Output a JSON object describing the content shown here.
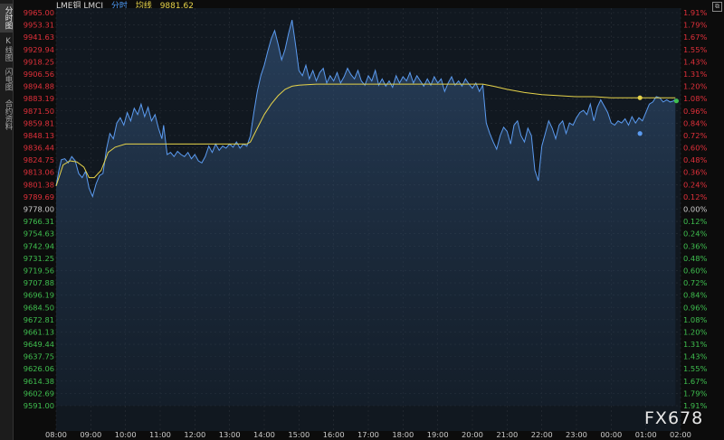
{
  "sidebar": {
    "tabs": [
      {
        "label": "分时图",
        "active": true
      },
      {
        "label": "K线图",
        "active": false
      },
      {
        "label": "闪电图",
        "active": false
      },
      {
        "label": "合约资料",
        "active": false
      }
    ]
  },
  "header": {
    "title": "LME铜 LMCI",
    "mode": "分时",
    "avg_label": "均线",
    "avg_value": "9881.62"
  },
  "watermark": "FX678",
  "colors": {
    "price_line": "#5b9bf0",
    "avg_line": "#e6d34a",
    "up_label": "#e0303a",
    "down_label": "#3fbf4f",
    "neutral_label": "#cccccc",
    "grid": "#2a3038"
  },
  "chart_data": {
    "type": "line",
    "prev_close": 9778.0,
    "ylim": [
      9591.0,
      9965.0
    ],
    "y_tick_labels": [
      "9965.00",
      "9953.31",
      "9941.63",
      "9929.94",
      "9918.25",
      "9906.56",
      "9894.88",
      "9883.19",
      "9871.50",
      "9859.81",
      "9848.13",
      "9836.44",
      "9824.75",
      "9813.06",
      "9801.38",
      "9789.69",
      "9778.00",
      "9766.31",
      "9754.63",
      "9742.94",
      "9731.25",
      "9719.56",
      "9707.88",
      "9696.19",
      "9684.50",
      "9672.81",
      "9661.13",
      "9649.44",
      "9637.75",
      "9626.06",
      "9614.38",
      "9602.69",
      "9591.00"
    ],
    "pct_tick_labels": [
      "1.91%",
      "1.79%",
      "1.67%",
      "1.55%",
      "1.43%",
      "1.31%",
      "1.20%",
      "1.08%",
      "0.96%",
      "0.84%",
      "0.72%",
      "0.60%",
      "0.48%",
      "0.36%",
      "0.24%",
      "0.12%",
      "0.00%",
      "0.12%",
      "0.24%",
      "0.36%",
      "0.48%",
      "0.60%",
      "0.72%",
      "0.84%",
      "0.96%",
      "1.08%",
      "1.20%",
      "1.31%",
      "1.43%",
      "1.55%",
      "1.67%",
      "1.79%",
      "1.91%"
    ],
    "x_tick_labels": [
      "08:00",
      "09:00",
      "10:00",
      "11:00",
      "12:00",
      "13:00",
      "14:00",
      "15:00",
      "16:00",
      "17:00",
      "18:00",
      "19:00",
      "20:00",
      "21:00",
      "22:00",
      "23:00",
      "00:00",
      "01:00",
      "02:00"
    ],
    "x_start_hours": 8,
    "x_span_hours": 18,
    "series": [
      {
        "kind": "price",
        "points": [
          [
            0.0,
            9800
          ],
          [
            0.08,
            9815
          ],
          [
            0.15,
            9825
          ],
          [
            0.25,
            9826
          ],
          [
            0.35,
            9822
          ],
          [
            0.45,
            9828
          ],
          [
            0.55,
            9824
          ],
          [
            0.65,
            9812
          ],
          [
            0.75,
            9808
          ],
          [
            0.85,
            9814
          ],
          [
            0.95,
            9798
          ],
          [
            1.05,
            9790
          ],
          [
            1.15,
            9802
          ],
          [
            1.25,
            9810
          ],
          [
            1.35,
            9812
          ],
          [
            1.45,
            9835
          ],
          [
            1.55,
            9850
          ],
          [
            1.65,
            9845
          ],
          [
            1.75,
            9860
          ],
          [
            1.85,
            9865
          ],
          [
            1.95,
            9858
          ],
          [
            2.05,
            9870
          ],
          [
            2.15,
            9862
          ],
          [
            2.25,
            9874
          ],
          [
            2.35,
            9868
          ],
          [
            2.45,
            9878
          ],
          [
            2.55,
            9866
          ],
          [
            2.65,
            9875
          ],
          [
            2.75,
            9862
          ],
          [
            2.85,
            9868
          ],
          [
            2.95,
            9855
          ],
          [
            3.05,
            9845
          ],
          [
            3.1,
            9858
          ],
          [
            3.2,
            9830
          ],
          [
            3.3,
            9832
          ],
          [
            3.4,
            9828
          ],
          [
            3.5,
            9833
          ],
          [
            3.6,
            9830
          ],
          [
            3.7,
            9828
          ],
          [
            3.8,
            9832
          ],
          [
            3.9,
            9826
          ],
          [
            4.0,
            9830
          ],
          [
            4.1,
            9824
          ],
          [
            4.2,
            9822
          ],
          [
            4.3,
            9828
          ],
          [
            4.4,
            9838
          ],
          [
            4.5,
            9832
          ],
          [
            4.6,
            9840
          ],
          [
            4.7,
            9834
          ],
          [
            4.8,
            9838
          ],
          [
            4.9,
            9836
          ],
          [
            5.0,
            9840
          ],
          [
            5.1,
            9837
          ],
          [
            5.2,
            9842
          ],
          [
            5.3,
            9836
          ],
          [
            5.4,
            9840
          ],
          [
            5.5,
            9838
          ],
          [
            5.6,
            9848
          ],
          [
            5.7,
            9870
          ],
          [
            5.8,
            9890
          ],
          [
            5.9,
            9905
          ],
          [
            6.0,
            9915
          ],
          [
            6.1,
            9928
          ],
          [
            6.2,
            9940
          ],
          [
            6.3,
            9948
          ],
          [
            6.4,
            9935
          ],
          [
            6.5,
            9920
          ],
          [
            6.6,
            9930
          ],
          [
            6.7,
            9945
          ],
          [
            6.8,
            9958
          ],
          [
            6.9,
            9935
          ],
          [
            7.0,
            9910
          ],
          [
            7.1,
            9905
          ],
          [
            7.2,
            9915
          ],
          [
            7.3,
            9902
          ],
          [
            7.4,
            9910
          ],
          [
            7.5,
            9900
          ],
          [
            7.6,
            9908
          ],
          [
            7.7,
            9912
          ],
          [
            7.8,
            9898
          ],
          [
            7.9,
            9905
          ],
          [
            8.0,
            9900
          ],
          [
            8.1,
            9908
          ],
          [
            8.2,
            9898
          ],
          [
            8.3,
            9904
          ],
          [
            8.4,
            9912
          ],
          [
            8.5,
            9906
          ],
          [
            8.6,
            9902
          ],
          [
            8.7,
            9910
          ],
          [
            8.8,
            9900
          ],
          [
            8.9,
            9896
          ],
          [
            9.0,
            9905
          ],
          [
            9.1,
            9900
          ],
          [
            9.2,
            9910
          ],
          [
            9.3,
            9896
          ],
          [
            9.4,
            9902
          ],
          [
            9.5,
            9895
          ],
          [
            9.6,
            9900
          ],
          [
            9.7,
            9894
          ],
          [
            9.8,
            9905
          ],
          [
            9.9,
            9898
          ],
          [
            10.0,
            9904
          ],
          [
            10.1,
            9900
          ],
          [
            10.2,
            9908
          ],
          [
            10.3,
            9898
          ],
          [
            10.4,
            9905
          ],
          [
            10.5,
            9900
          ],
          [
            10.6,
            9895
          ],
          [
            10.7,
            9902
          ],
          [
            10.8,
            9896
          ],
          [
            10.9,
            9904
          ],
          [
            11.0,
            9898
          ],
          [
            11.1,
            9902
          ],
          [
            11.2,
            9890
          ],
          [
            11.3,
            9898
          ],
          [
            11.4,
            9904
          ],
          [
            11.5,
            9896
          ],
          [
            11.6,
            9900
          ],
          [
            11.7,
            9895
          ],
          [
            11.8,
            9902
          ],
          [
            11.9,
            9897
          ],
          [
            12.0,
            9893
          ],
          [
            12.1,
            9898
          ],
          [
            12.2,
            9890
          ],
          [
            12.3,
            9896
          ],
          [
            12.4,
            9860
          ],
          [
            12.5,
            9850
          ],
          [
            12.6,
            9842
          ],
          [
            12.7,
            9835
          ],
          [
            12.8,
            9848
          ],
          [
            12.9,
            9856
          ],
          [
            13.0,
            9852
          ],
          [
            13.1,
            9840
          ],
          [
            13.2,
            9858
          ],
          [
            13.3,
            9862
          ],
          [
            13.4,
            9848
          ],
          [
            13.5,
            9842
          ],
          [
            13.6,
            9855
          ],
          [
            13.7,
            9848
          ],
          [
            13.8,
            9815
          ],
          [
            13.9,
            9805
          ],
          [
            14.0,
            9838
          ],
          [
            14.1,
            9850
          ],
          [
            14.2,
            9862
          ],
          [
            14.3,
            9855
          ],
          [
            14.4,
            9845
          ],
          [
            14.5,
            9858
          ],
          [
            14.6,
            9862
          ],
          [
            14.7,
            9850
          ],
          [
            14.8,
            9860
          ],
          [
            14.9,
            9858
          ],
          [
            15.0,
            9865
          ],
          [
            15.1,
            9870
          ],
          [
            15.2,
            9872
          ],
          [
            15.3,
            9868
          ],
          [
            15.4,
            9878
          ],
          [
            15.5,
            9862
          ],
          [
            15.6,
            9875
          ],
          [
            15.7,
            9882
          ],
          [
            15.8,
            9876
          ],
          [
            15.9,
            9870
          ],
          [
            16.0,
            9860
          ],
          [
            16.1,
            9858
          ],
          [
            16.2,
            9862
          ],
          [
            16.3,
            9860
          ],
          [
            16.4,
            9864
          ],
          [
            16.5,
            9858
          ],
          [
            16.6,
            9866
          ],
          [
            16.7,
            9860
          ],
          [
            16.8,
            9865
          ],
          [
            16.9,
            9862
          ],
          [
            17.0,
            9870
          ],
          [
            17.1,
            9878
          ],
          [
            17.2,
            9880
          ],
          [
            17.3,
            9885
          ],
          [
            17.4,
            9884
          ],
          [
            17.5,
            9880
          ],
          [
            17.6,
            9882
          ],
          [
            17.7,
            9880
          ],
          [
            17.8,
            9881
          ],
          [
            17.85,
            9883
          ]
        ]
      },
      {
        "kind": "average",
        "points": [
          [
            0.0,
            9800
          ],
          [
            0.2,
            9820
          ],
          [
            0.4,
            9824
          ],
          [
            0.6,
            9823
          ],
          [
            0.8,
            9818
          ],
          [
            0.95,
            9808
          ],
          [
            1.1,
            9808
          ],
          [
            1.3,
            9815
          ],
          [
            1.5,
            9832
          ],
          [
            1.7,
            9837
          ],
          [
            2.0,
            9840
          ],
          [
            2.5,
            9840
          ],
          [
            3.0,
            9840
          ],
          [
            3.5,
            9840
          ],
          [
            4.0,
            9840
          ],
          [
            4.5,
            9840
          ],
          [
            5.0,
            9840
          ],
          [
            5.5,
            9840
          ],
          [
            5.6,
            9842
          ],
          [
            5.8,
            9855
          ],
          [
            6.0,
            9868
          ],
          [
            6.2,
            9878
          ],
          [
            6.4,
            9886
          ],
          [
            6.6,
            9892
          ],
          [
            6.8,
            9895
          ],
          [
            7.0,
            9896
          ],
          [
            7.5,
            9897
          ],
          [
            8.0,
            9897
          ],
          [
            9.0,
            9897
          ],
          [
            10.0,
            9897
          ],
          [
            11.0,
            9897
          ],
          [
            12.0,
            9897
          ],
          [
            12.3,
            9897
          ],
          [
            12.6,
            9895
          ],
          [
            13.0,
            9892
          ],
          [
            13.5,
            9889
          ],
          [
            14.0,
            9887
          ],
          [
            14.5,
            9886
          ],
          [
            15.0,
            9885
          ],
          [
            15.5,
            9885
          ],
          [
            16.0,
            9884
          ],
          [
            16.5,
            9884
          ],
          [
            17.0,
            9884
          ],
          [
            17.5,
            9884
          ],
          [
            17.85,
            9884
          ]
        ]
      }
    ],
    "markers": [
      {
        "x": 16.83,
        "y": 9884,
        "color": "#e6d34a"
      },
      {
        "x": 16.83,
        "y": 9850,
        "color": "#5b9bf0"
      },
      {
        "x": 17.88,
        "y": 9881,
        "color": "#3fbf4f"
      }
    ]
  }
}
